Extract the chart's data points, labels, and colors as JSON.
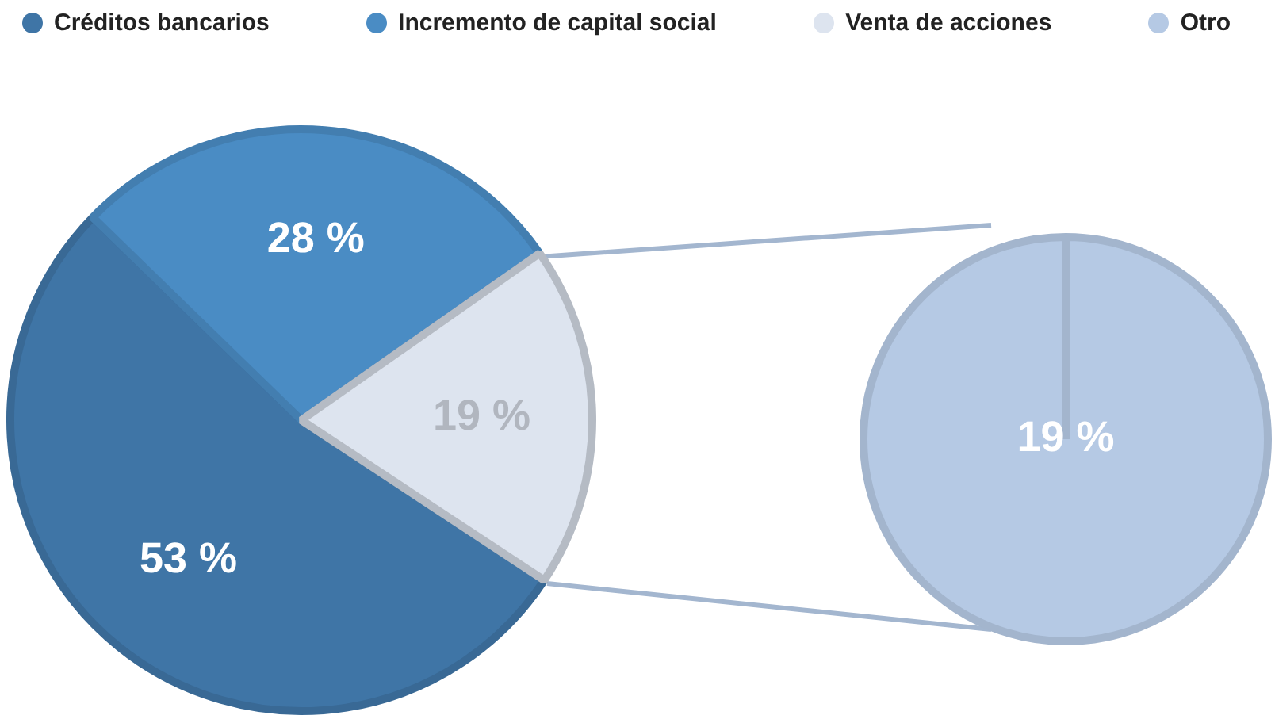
{
  "chart_data": [
    {
      "type": "pie",
      "categories": [
        "Créditos bancarios",
        "Incremento de capital social",
        "Venta de acciones"
      ],
      "values": [
        53,
        28,
        19
      ],
      "colors": [
        "#3f75a6",
        "#4a8cc4",
        "#dde4ef"
      ],
      "value_labels": [
        "53 %",
        "28 %",
        "19 %"
      ],
      "legend": "top"
    },
    {
      "type": "pie",
      "categories": [
        "Otro"
      ],
      "values": [
        19
      ],
      "colors": [
        "#b5c9e4"
      ],
      "value_labels": [
        "19 %"
      ],
      "legend": "top"
    }
  ]
}
